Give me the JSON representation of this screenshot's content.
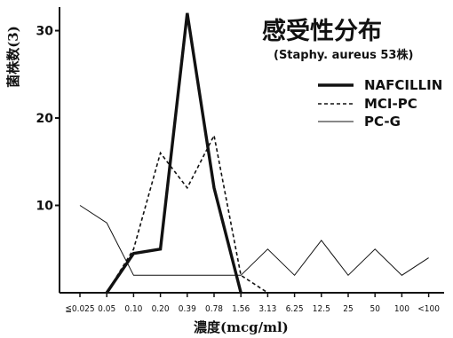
{
  "chart_data": {
    "type": "line",
    "title": "感受性分布",
    "subtitle": "(Staphy. aureus 53株)",
    "xlabel": "濃度(mcg/ml)",
    "ylabel": "菌株数(3)",
    "categories": [
      "≦0.025",
      "0.05",
      "0.10",
      "0.20",
      "0.39",
      "0.78",
      "1.56",
      "3.13",
      "6.25",
      "12.5",
      "25",
      "50",
      "100",
      "<100"
    ],
    "ylim": [
      0,
      33
    ],
    "yticks": [
      10,
      20,
      30
    ],
    "yticklabels": [
      "10",
      "20",
      "30"
    ],
    "series": [
      {
        "name": "NAFCILLIN",
        "style": "thick-solid",
        "values": [
          null,
          0,
          4.5,
          5,
          32,
          12,
          0,
          null,
          null,
          null,
          null,
          null,
          null,
          null
        ]
      },
      {
        "name": "MCI-PC",
        "style": "dashed",
        "values": [
          null,
          0,
          5,
          16,
          12,
          18,
          2,
          0,
          null,
          null,
          null,
          null,
          null,
          null
        ]
      },
      {
        "name": "PC-G",
        "style": "thin-solid",
        "values": [
          10,
          8,
          2,
          2,
          2,
          2,
          2,
          5,
          2,
          6,
          2,
          5,
          2,
          4
        ]
      }
    ],
    "legend_position": "top-right",
    "grid": false
  }
}
